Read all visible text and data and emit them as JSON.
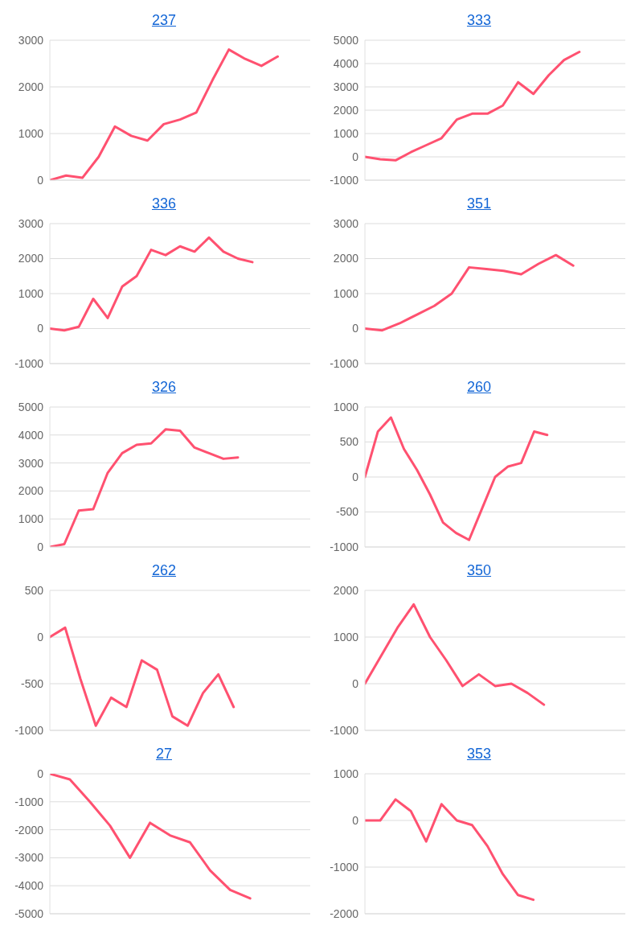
{
  "chart_data": [
    {
      "type": "line",
      "title": "237",
      "categories": [
        null,
        null,
        null,
        null,
        null,
        null,
        null,
        null,
        null,
        null,
        null,
        null,
        null,
        null,
        null,
        null,
        null
      ],
      "values": [
        0,
        100,
        50,
        500,
        1150,
        950,
        850,
        1200,
        1300,
        1450,
        2150,
        2800,
        2600,
        2450,
        2650,
        null,
        null
      ],
      "color": "#ff5170",
      "ylim": [
        0,
        3000
      ],
      "yticks": [
        0,
        1000,
        2000,
        3000
      ],
      "grid": "y",
      "tick_labels": "y"
    },
    {
      "type": "line",
      "title": "333",
      "categories": [
        null,
        null,
        null,
        null,
        null,
        null,
        null,
        null,
        null,
        null,
        null,
        null,
        null,
        null,
        null,
        null,
        null,
        null
      ],
      "values": [
        0,
        -100,
        -150,
        200,
        500,
        800,
        1600,
        1850,
        1850,
        2200,
        3200,
        2700,
        3500,
        4150,
        4500,
        null,
        null,
        null
      ],
      "color": "#ff5170",
      "ylim": [
        -1000,
        5000
      ],
      "yticks": [
        -1000,
        0,
        1000,
        2000,
        3000,
        4000,
        5000
      ],
      "grid": "y",
      "tick_labels": "y"
    },
    {
      "type": "line",
      "title": "336",
      "categories": [
        null,
        null,
        null,
        null,
        null,
        null,
        null,
        null,
        null,
        null,
        null,
        null,
        null,
        null,
        null,
        null,
        null,
        null,
        null
      ],
      "values": [
        0,
        -50,
        50,
        850,
        300,
        1200,
        1500,
        2250,
        2100,
        2350,
        2200,
        2600,
        2200,
        2000,
        1900,
        null,
        null,
        null,
        null
      ],
      "color": "#ff5170",
      "ylim": [
        -1000,
        3000
      ],
      "yticks": [
        -1000,
        0,
        1000,
        2000,
        3000
      ],
      "grid": "y",
      "tick_labels": "y"
    },
    {
      "type": "line",
      "title": "351",
      "categories": [
        null,
        null,
        null,
        null,
        null,
        null,
        null,
        null,
        null,
        null,
        null,
        null,
        null,
        null,
        null,
        null
      ],
      "values": [
        0,
        -50,
        150,
        400,
        650,
        1000,
        1750,
        1700,
        1650,
        1550,
        1850,
        2100,
        1800,
        null,
        null,
        null
      ],
      "color": "#ff5170",
      "ylim": [
        -1000,
        3000
      ],
      "yticks": [
        -1000,
        0,
        1000,
        2000,
        3000
      ],
      "grid": "y",
      "tick_labels": "y"
    },
    {
      "type": "line",
      "title": "326",
      "categories": [
        null,
        null,
        null,
        null,
        null,
        null,
        null,
        null,
        null,
        null,
        null,
        null,
        null,
        null,
        null,
        null,
        null,
        null,
        null
      ],
      "values": [
        0,
        100,
        1300,
        1350,
        2650,
        3350,
        3650,
        3700,
        4200,
        4150,
        3550,
        3350,
        3150,
        3200,
        null,
        null,
        null,
        null,
        null
      ],
      "color": "#ff5170",
      "ylim": [
        0,
        5000
      ],
      "yticks": [
        0,
        1000,
        2000,
        3000,
        4000,
        5000
      ],
      "grid": "y",
      "tick_labels": "y"
    },
    {
      "type": "line",
      "title": "260",
      "categories": [
        null,
        null,
        null,
        null,
        null,
        null,
        null,
        null,
        null,
        null,
        null,
        null,
        null,
        null,
        null,
        null,
        null,
        null,
        null,
        null,
        null
      ],
      "values": [
        0,
        650,
        850,
        400,
        100,
        -250,
        -650,
        -800,
        -900,
        -450,
        0,
        150,
        200,
        650,
        600,
        null,
        null,
        null,
        null,
        null,
        null
      ],
      "color": "#ff5170",
      "ylim": [
        -1000,
        1000
      ],
      "yticks": [
        -1000,
        -500,
        0,
        500,
        1000
      ],
      "grid": "y",
      "tick_labels": "y"
    },
    {
      "type": "line",
      "title": "262",
      "categories": [
        null,
        null,
        null,
        null,
        null,
        null,
        null,
        null,
        null,
        null,
        null,
        null,
        null,
        null,
        null,
        null,
        null,
        null
      ],
      "values": [
        0,
        100,
        -450,
        -950,
        -650,
        -750,
        -250,
        -350,
        -850,
        -950,
        -600,
        -400,
        -750,
        null,
        null,
        null,
        null,
        null
      ],
      "color": "#ff5170",
      "ylim": [
        -1000,
        500
      ],
      "yticks": [
        -1000,
        -500,
        0,
        500
      ],
      "grid": "y",
      "tick_labels": "y"
    },
    {
      "type": "line",
      "title": "350",
      "categories": [
        null,
        null,
        null,
        null,
        null,
        null,
        null,
        null,
        null,
        null,
        null,
        null,
        null,
        null,
        null,
        null,
        null
      ],
      "values": [
        0,
        600,
        1200,
        1700,
        1000,
        500,
        -50,
        200,
        -50,
        0,
        -200,
        -450,
        null,
        null,
        null,
        null,
        null
      ],
      "color": "#ff5170",
      "ylim": [
        -1000,
        2000
      ],
      "yticks": [
        -1000,
        0,
        1000,
        2000
      ],
      "grid": "y",
      "tick_labels": "y"
    },
    {
      "type": "line",
      "title": "27",
      "categories": [
        null,
        null,
        null,
        null,
        null,
        null,
        null,
        null,
        null,
        null,
        null,
        null,
        null,
        null
      ],
      "values": [
        0,
        -200,
        -1000,
        -1850,
        -3000,
        -1750,
        -2200,
        -2450,
        -3450,
        -4150,
        -4450,
        null,
        null,
        null
      ],
      "color": "#ff5170",
      "ylim": [
        -5000,
        0
      ],
      "yticks": [
        -5000,
        -4000,
        -3000,
        -2000,
        -1000,
        0
      ],
      "grid": "y",
      "tick_labels": "y"
    },
    {
      "type": "line",
      "title": "353",
      "categories": [
        null,
        null,
        null,
        null,
        null,
        null,
        null,
        null,
        null,
        null,
        null,
        null,
        null,
        null,
        null,
        null,
        null,
        null
      ],
      "values": [
        0,
        0,
        450,
        200,
        -450,
        350,
        0,
        -100,
        -550,
        -1150,
        -1600,
        -1700,
        null,
        null,
        null,
        null,
        null,
        null
      ],
      "color": "#ff5170",
      "ylim": [
        -2000,
        1000
      ],
      "yticks": [
        -2000,
        -1000,
        0,
        1000
      ],
      "grid": "y",
      "tick_labels": "y"
    }
  ]
}
